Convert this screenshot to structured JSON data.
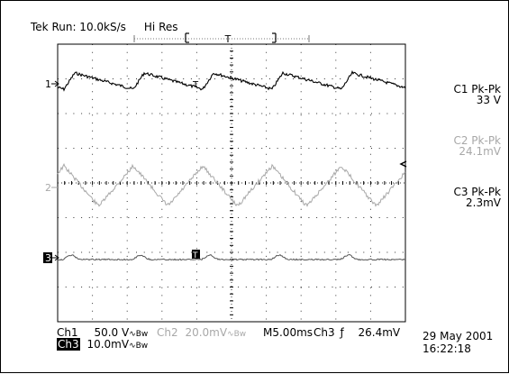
{
  "status": {
    "run_text": "Tek Run: 10.0kS/s",
    "mode": "Hi Res"
  },
  "trigger_bracket": {
    "label": "T"
  },
  "markers": {
    "ch1": "1",
    "ch2": "2",
    "ch3": "3",
    "trigger_t": "T"
  },
  "measurements": [
    {
      "label": "C1 Pk-Pk",
      "value": "33 V",
      "color": "#000000"
    },
    {
      "label": "C2 Pk-Pk",
      "value": "24.1mV",
      "color": "#a8a8a8"
    },
    {
      "label": "C3 Pk-Pk",
      "value": "2.3mV",
      "color": "#000000"
    }
  ],
  "scale_readouts": {
    "ch1": {
      "name": "Ch1",
      "scale": "50.0 V",
      "coupling": "∿Bw"
    },
    "ch2": {
      "name": "Ch2",
      "scale": "20.0mV",
      "coupling": "∿Bw",
      "color": "#a8a8a8"
    },
    "ch3": {
      "name": "Ch3",
      "scale": "10.0mV",
      "coupling": "∿Bw"
    },
    "timebase": "M5.00ms",
    "trigger_source": "Ch3",
    "trigger_slope": "ƒ",
    "trigger_level": "26.4mV"
  },
  "datetime": {
    "date": "29 May 2001",
    "time": "16:22:18"
  },
  "colors": {
    "ch1": "#000000",
    "ch2": "#a8a8a8",
    "ch3": "#555555",
    "grid": "#000000"
  }
}
